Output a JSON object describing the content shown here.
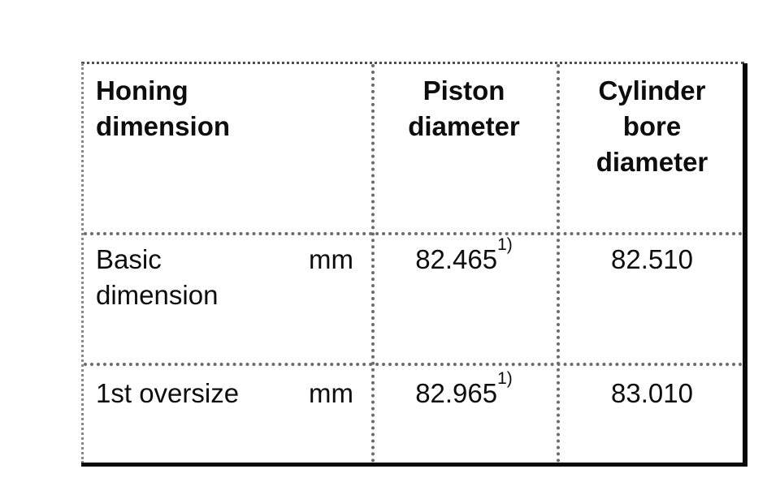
{
  "colors": {
    "paper": "#ffffff",
    "ink": "#0d0d0d",
    "border-gray": "#6b6b6b",
    "border-light": "#8a8a8a",
    "border-dark": "#0a0a0a"
  },
  "table": {
    "header": {
      "honing": "Honing\ndimension",
      "piston": "Piston\ndiameter",
      "cylinder": "Cylinder\nbore\ndiameter"
    },
    "rows": [
      {
        "label": "Basic\ndimension",
        "unit": "mm",
        "piston_value": "82.465",
        "piston_footnote": "1)",
        "bore_value": "82.510"
      },
      {
        "label": "1st oversize",
        "unit": "mm",
        "piston_value": "82.965",
        "piston_footnote": "1)",
        "bore_value": "83.010"
      }
    ]
  }
}
